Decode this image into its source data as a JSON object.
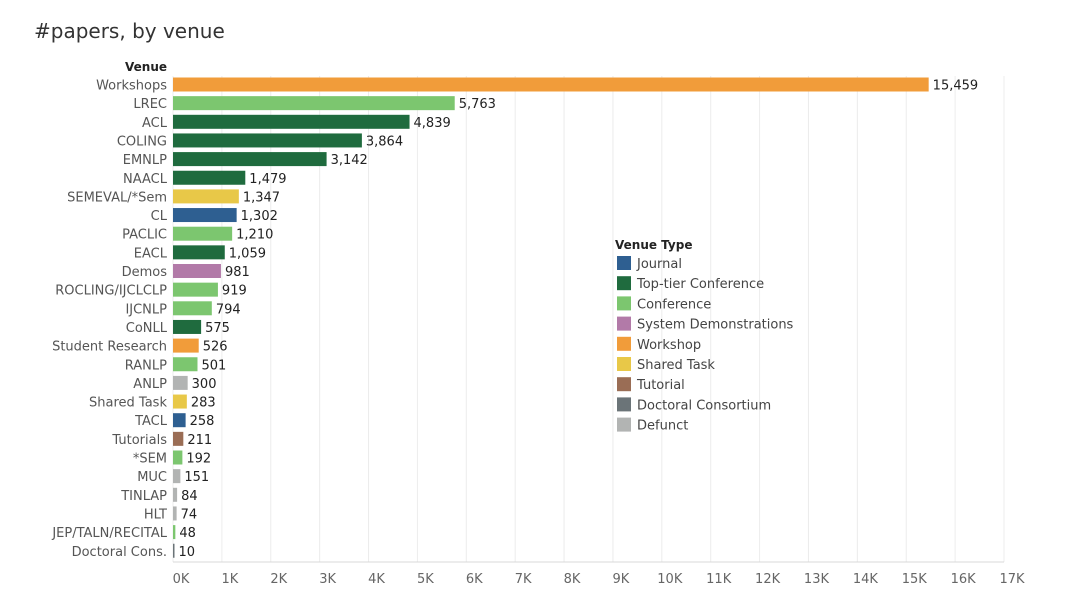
{
  "title": "#papers, by venue",
  "colors": {
    "Journal": "#2e5f91",
    "Top-tier Conference": "#1f6b3e",
    "Conference": "#7cc66f",
    "System Demonstrations": "#b27aa8",
    "Workshop": "#f19c3a",
    "Shared Task": "#e8c848",
    "Tutorial": "#9a6d55",
    "Doctoral Consortium": "#6b7478",
    "Defunct": "#b2b4b3"
  },
  "chart_data": {
    "type": "bar",
    "orientation": "horizontal",
    "title": "#papers, by venue",
    "row_header": "Venue",
    "xlim": [
      0,
      17000
    ],
    "xticks": [
      0,
      1000,
      2000,
      3000,
      4000,
      5000,
      6000,
      7000,
      8000,
      9000,
      10000,
      11000,
      12000,
      13000,
      14000,
      15000,
      16000,
      17000
    ],
    "xtick_labels": [
      "0K",
      "1K",
      "2K",
      "3K",
      "4K",
      "5K",
      "6K",
      "7K",
      "8K",
      "9K",
      "10K",
      "11K",
      "12K",
      "13K",
      "14K",
      "15K",
      "16K",
      "17K"
    ],
    "grid": true,
    "legend_placement": "right",
    "legend_title": "Venue Type",
    "legend": [
      "Journal",
      "Top-tier Conference",
      "Conference",
      "System Demonstrations",
      "Workshop",
      "Shared Task",
      "Tutorial",
      "Doctoral Consortium",
      "Defunct"
    ],
    "bars": [
      {
        "label": "Workshops",
        "value": 15459,
        "value_label": "15,459",
        "type": "Workshop"
      },
      {
        "label": "LREC",
        "value": 5763,
        "value_label": "5,763",
        "type": "Conference"
      },
      {
        "label": "ACL",
        "value": 4839,
        "value_label": "4,839",
        "type": "Top-tier Conference"
      },
      {
        "label": "COLING",
        "value": 3864,
        "value_label": "3,864",
        "type": "Top-tier Conference"
      },
      {
        "label": "EMNLP",
        "value": 3142,
        "value_label": "3,142",
        "type": "Top-tier Conference"
      },
      {
        "label": "NAACL",
        "value": 1479,
        "value_label": "1,479",
        "type": "Top-tier Conference"
      },
      {
        "label": "SEMEVAL/*Sem",
        "value": 1347,
        "value_label": "1,347",
        "type": "Shared Task"
      },
      {
        "label": "CL",
        "value": 1302,
        "value_label": "1,302",
        "type": "Journal"
      },
      {
        "label": "PACLIC",
        "value": 1210,
        "value_label": "1,210",
        "type": "Conference"
      },
      {
        "label": "EACL",
        "value": 1059,
        "value_label": "1,059",
        "type": "Top-tier Conference"
      },
      {
        "label": "Demos",
        "value": 981,
        "value_label": "981",
        "type": "System Demonstrations"
      },
      {
        "label": "ROCLING/IJCLCLP",
        "value": 919,
        "value_label": "919",
        "type": "Conference"
      },
      {
        "label": "IJCNLP",
        "value": 794,
        "value_label": "794",
        "type": "Conference"
      },
      {
        "label": "CoNLL",
        "value": 575,
        "value_label": "575",
        "type": "Top-tier Conference"
      },
      {
        "label": "Student Research",
        "value": 526,
        "value_label": "526",
        "type": "Workshop"
      },
      {
        "label": "RANLP",
        "value": 501,
        "value_label": "501",
        "type": "Conference"
      },
      {
        "label": "ANLP",
        "value": 300,
        "value_label": "300",
        "type": "Defunct"
      },
      {
        "label": "Shared Task",
        "value": 283,
        "value_label": "283",
        "type": "Shared Task"
      },
      {
        "label": "TACL",
        "value": 258,
        "value_label": "258",
        "type": "Journal"
      },
      {
        "label": "Tutorials",
        "value": 211,
        "value_label": "211",
        "type": "Tutorial"
      },
      {
        "label": "*SEM",
        "value": 192,
        "value_label": "192",
        "type": "Conference"
      },
      {
        "label": "MUC",
        "value": 151,
        "value_label": "151",
        "type": "Defunct"
      },
      {
        "label": "TINLAP",
        "value": 84,
        "value_label": "84",
        "type": "Defunct"
      },
      {
        "label": "HLT",
        "value": 74,
        "value_label": "74",
        "type": "Defunct"
      },
      {
        "label": "JEP/TALN/RECITAL",
        "value": 48,
        "value_label": "48",
        "type": "Conference"
      },
      {
        "label": "Doctoral Cons.",
        "value": 10,
        "value_label": "10",
        "type": "Doctoral Consortium"
      }
    ]
  }
}
